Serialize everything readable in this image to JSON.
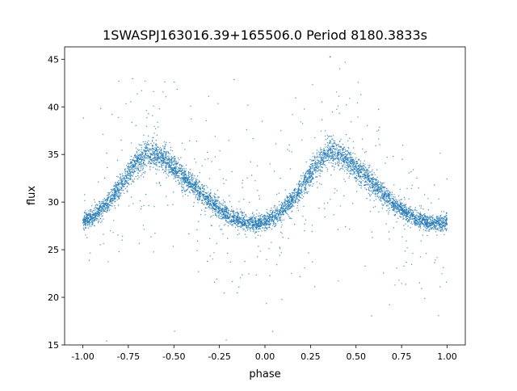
{
  "chart_data": {
    "type": "scatter",
    "title": "1SWASPJ163016.39+165506.0 Period 8180.3833s",
    "xlabel": "phase",
    "ylabel": "flux",
    "xlim": [
      -1.1,
      1.1
    ],
    "ylim": [
      15,
      46.3
    ],
    "xticks": [
      "-1.00",
      "-0.75",
      "-0.50",
      "-0.25",
      "0.00",
      "0.25",
      "0.50",
      "0.75",
      "1.00"
    ],
    "yticks": [
      "15",
      "20",
      "25",
      "30",
      "35",
      "40",
      "45"
    ],
    "grid": false,
    "color": "#1f77b4",
    "series": [
      {
        "name": "flux",
        "note_phase_fold": "curve repeats with period 1 in phase",
        "phase": [
          0.0,
          0.05,
          0.1,
          0.15,
          0.2,
          0.25,
          0.3,
          0.35,
          0.4,
          0.45,
          0.5,
          0.55,
          0.6,
          0.65,
          0.7,
          0.75,
          0.8,
          0.85,
          0.9,
          0.95,
          1.0
        ],
        "median_flux": [
          27.9,
          28.4,
          29.2,
          30.2,
          31.5,
          33.0,
          34.3,
          35.2,
          35.1,
          34.4,
          33.6,
          32.7,
          31.8,
          30.9,
          30.0,
          29.2,
          28.6,
          28.1,
          27.8,
          27.7,
          27.9
        ],
        "band_sigma": 0.6,
        "outlier_fraction": 0.08,
        "outlier_sigma": 5.0,
        "n_points": 6000
      }
    ]
  }
}
